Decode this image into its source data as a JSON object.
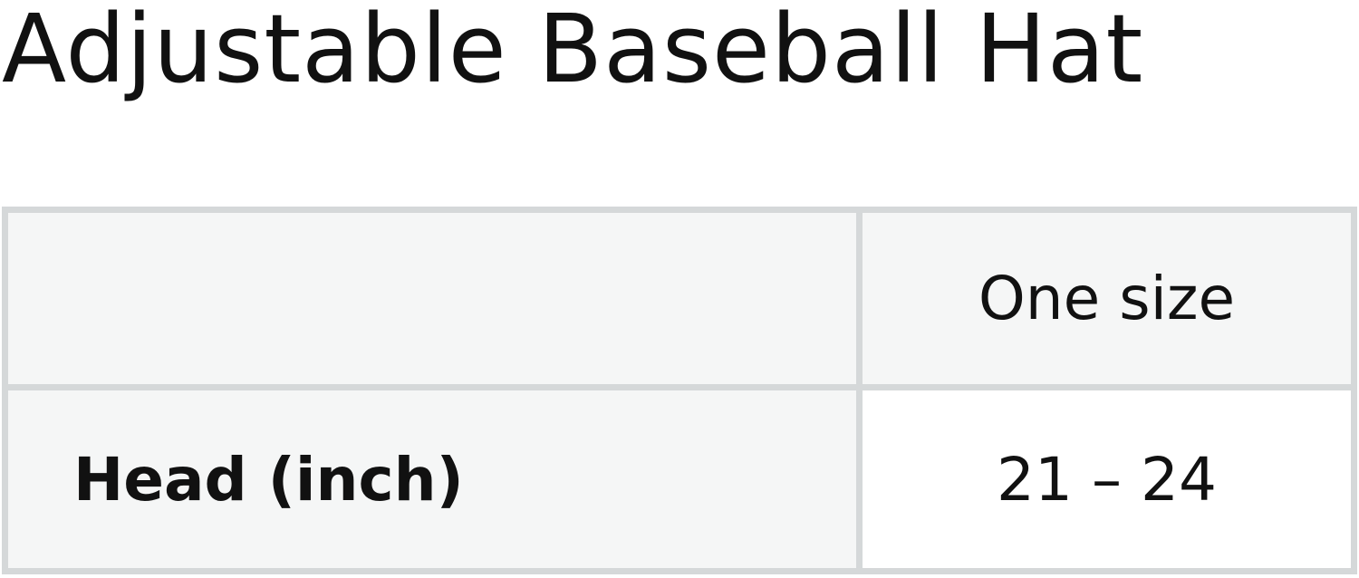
{
  "title": "Adjustable Baseball Hat",
  "table": {
    "header": [
      "",
      "One size"
    ],
    "rows": [
      {
        "label": "Head (inch)",
        "value": "21 – 24"
      }
    ]
  },
  "colors": {
    "border": "#d5d8d9",
    "header_bg": "#f5f6f6",
    "cell_bg": "#ffffff",
    "text": "#111111"
  }
}
